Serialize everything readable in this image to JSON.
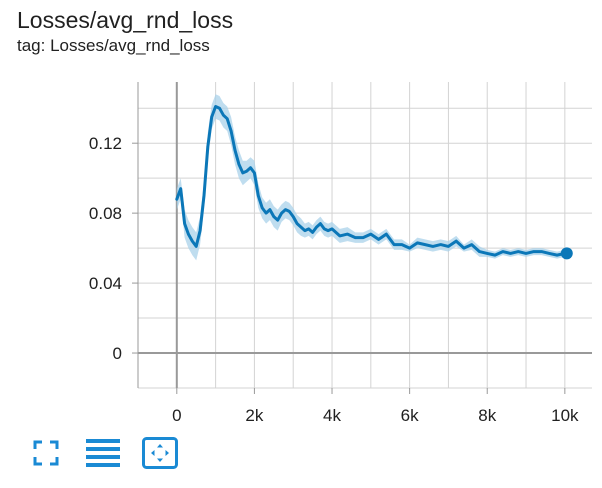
{
  "header": {
    "title": "Losses/avg_rnd_loss",
    "subtitle": "tag: Losses/avg_rnd_loss"
  },
  "colors": {
    "line": "#0b77b8",
    "band": "#a9d1ea",
    "grid": "#d3d3d3",
    "axis": "#999999",
    "icon": "#1a8ad4"
  },
  "toolbar": {
    "icons": [
      "fullscreen-icon",
      "toggle-log-scale-icon",
      "fit-domain-icon"
    ]
  },
  "chart_data": {
    "type": "line",
    "title": "Losses/avg_rnd_loss",
    "xlabel": "",
    "ylabel": "",
    "xlim": [
      -1000,
      10700
    ],
    "ylim": [
      -0.02,
      0.155
    ],
    "x_ticks": [
      0,
      2000,
      4000,
      6000,
      8000,
      10000
    ],
    "x_tick_labels": [
      "0",
      "2k",
      "4k",
      "6k",
      "8k",
      "10k"
    ],
    "y_ticks": [
      0,
      0.04,
      0.08,
      0.12
    ],
    "y_tick_labels": [
      "0",
      "0.04",
      "0.08",
      "0.12"
    ],
    "grid": true,
    "series": [
      {
        "x": [
          0,
          100,
          200,
          300,
          400,
          500,
          600,
          700,
          800,
          900,
          1000,
          1100,
          1200,
          1300,
          1400,
          1500,
          1600,
          1700,
          1800,
          1900,
          2000,
          2100,
          2200,
          2300,
          2400,
          2500,
          2600,
          2700,
          2800,
          2900,
          3000,
          3100,
          3200,
          3300,
          3400,
          3500,
          3600,
          3700,
          3800,
          3900,
          4000,
          4200,
          4400,
          4600,
          4800,
          5000,
          5200,
          5400,
          5600,
          5800,
          6000,
          6200,
          6400,
          6600,
          6800,
          7000,
          7200,
          7400,
          7600,
          7800,
          8000,
          8200,
          8400,
          8600,
          8800,
          9000,
          9200,
          9400,
          9600,
          9800,
          10000,
          10050
        ],
        "y": [
          0.088,
          0.094,
          0.074,
          0.068,
          0.064,
          0.061,
          0.07,
          0.09,
          0.118,
          0.135,
          0.141,
          0.14,
          0.136,
          0.134,
          0.127,
          0.116,
          0.108,
          0.103,
          0.104,
          0.106,
          0.103,
          0.09,
          0.083,
          0.08,
          0.082,
          0.078,
          0.076,
          0.08,
          0.082,
          0.081,
          0.078,
          0.074,
          0.072,
          0.07,
          0.071,
          0.069,
          0.072,
          0.074,
          0.071,
          0.07,
          0.071,
          0.067,
          0.068,
          0.066,
          0.066,
          0.068,
          0.065,
          0.068,
          0.062,
          0.062,
          0.06,
          0.063,
          0.062,
          0.061,
          0.062,
          0.061,
          0.064,
          0.06,
          0.062,
          0.058,
          0.057,
          0.056,
          0.058,
          0.057,
          0.058,
          0.057,
          0.058,
          0.058,
          0.057,
          0.056,
          0.057,
          0.057
        ],
        "band_low": [
          0.082,
          0.088,
          0.066,
          0.06,
          0.056,
          0.053,
          0.062,
          0.082,
          0.11,
          0.128,
          0.134,
          0.133,
          0.129,
          0.127,
          0.119,
          0.108,
          0.1,
          0.096,
          0.098,
          0.1,
          0.096,
          0.083,
          0.077,
          0.074,
          0.076,
          0.072,
          0.07,
          0.075,
          0.077,
          0.076,
          0.073,
          0.069,
          0.067,
          0.066,
          0.067,
          0.065,
          0.068,
          0.07,
          0.067,
          0.066,
          0.067,
          0.063,
          0.064,
          0.063,
          0.063,
          0.065,
          0.062,
          0.065,
          0.059,
          0.059,
          0.058,
          0.06,
          0.059,
          0.058,
          0.059,
          0.058,
          0.061,
          0.058,
          0.059,
          0.055,
          0.055,
          0.054,
          0.056,
          0.055,
          0.056,
          0.055,
          0.056,
          0.056,
          0.055,
          0.054,
          0.055,
          0.055
        ],
        "band_high": [
          0.094,
          0.1,
          0.082,
          0.076,
          0.072,
          0.069,
          0.078,
          0.098,
          0.126,
          0.142,
          0.148,
          0.147,
          0.143,
          0.141,
          0.135,
          0.124,
          0.116,
          0.11,
          0.11,
          0.112,
          0.11,
          0.097,
          0.089,
          0.086,
          0.088,
          0.084,
          0.082,
          0.085,
          0.087,
          0.086,
          0.083,
          0.079,
          0.077,
          0.074,
          0.075,
          0.073,
          0.076,
          0.078,
          0.075,
          0.074,
          0.075,
          0.071,
          0.072,
          0.069,
          0.069,
          0.071,
          0.068,
          0.071,
          0.065,
          0.065,
          0.062,
          0.066,
          0.065,
          0.064,
          0.065,
          0.064,
          0.067,
          0.062,
          0.065,
          0.061,
          0.059,
          0.058,
          0.06,
          0.059,
          0.06,
          0.059,
          0.06,
          0.06,
          0.059,
          0.058,
          0.059,
          0.059
        ]
      }
    ]
  }
}
